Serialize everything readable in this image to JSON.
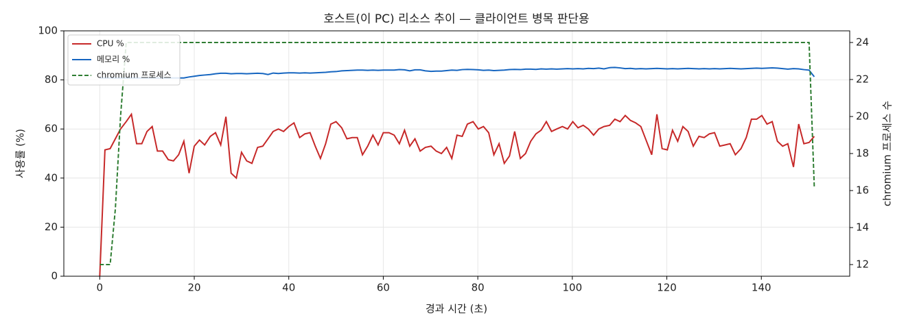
{
  "chart_data": {
    "type": "line",
    "title": "호스트(이 PC) 리소스 추이 — 클라이언트 병목 판단용",
    "xlabel": "경과 시간 (초)",
    "ylabel": "사용률 (%)",
    "y2label": "chromium 프로세스 수",
    "x": [
      0,
      1.1,
      2.2,
      3.3,
      4.4,
      5.6,
      6.7,
      7.8,
      8.9,
      10.0,
      11.1,
      12.2,
      13.3,
      14.5,
      15.6,
      16.7,
      17.8,
      18.9,
      20.0,
      21.1,
      22.2,
      23.4,
      24.5,
      25.6,
      26.7,
      27.8,
      28.9,
      30.0,
      31.1,
      32.2,
      33.4,
      34.5,
      35.6,
      36.7,
      37.8,
      38.9,
      40.0,
      41.1,
      42.3,
      43.4,
      44.5,
      45.6,
      46.7,
      47.8,
      48.9,
      50.0,
      51.2,
      52.3,
      53.4,
      54.5,
      55.6,
      56.7,
      57.8,
      58.9,
      60.0,
      61.2,
      62.3,
      63.4,
      64.5,
      65.6,
      66.7,
      67.8,
      68.9,
      70.1,
      71.2,
      72.3,
      73.4,
      74.5,
      75.6,
      76.7,
      77.8,
      79.0,
      80.1,
      81.2,
      82.3,
      83.4,
      84.5,
      85.6,
      86.7,
      87.8,
      89.0,
      90.1,
      91.2,
      92.3,
      93.4,
      94.5,
      95.6,
      96.7,
      97.9,
      99.0,
      100.1,
      101.2,
      102.3,
      103.4,
      104.5,
      105.6,
      106.7,
      107.9,
      109.0,
      110.1,
      111.2,
      112.3,
      113.4,
      114.5,
      115.6,
      116.8,
      117.9,
      119.0,
      120.1,
      121.2,
      122.3,
      123.4,
      124.5,
      125.6,
      126.8,
      127.9,
      129.0,
      130.1,
      131.2,
      132.3,
      133.4,
      134.5,
      135.7,
      136.8,
      137.9,
      139.0,
      140.1,
      141.2,
      142.3,
      143.4,
      144.5,
      145.6,
      146.8,
      147.9,
      149.0,
      150.1,
      151.2
    ],
    "series": [
      {
        "name": "CPU %",
        "color": "#c62828",
        "linestyle": "solid",
        "values": [
          0,
          51.5,
          52,
          56,
          60,
          63,
          66,
          54,
          54,
          59,
          61,
          51,
          51,
          47.5,
          47,
          49.5,
          55,
          42,
          53,
          55.5,
          53.5,
          57,
          58.5,
          53.5,
          65,
          42,
          40,
          50.5,
          47,
          46,
          52.5,
          53,
          56,
          59,
          60,
          59,
          61,
          62.5,
          56.5,
          58,
          58.5,
          53,
          48,
          54,
          62,
          63,
          60.5,
          56,
          56.5,
          56.5,
          49.5,
          53,
          57.5,
          53.5,
          58.5,
          58.5,
          57.5,
          54,
          59.5,
          53,
          56,
          51,
          52.5,
          53,
          51,
          50,
          52.5,
          48,
          57.5,
          57,
          62,
          63,
          60,
          61,
          58.5,
          49.5,
          54,
          46,
          49,
          59,
          48,
          50,
          55,
          58,
          59.5,
          63,
          59,
          60,
          61,
          60,
          63,
          60.5,
          61.5,
          60,
          57.5,
          60,
          61,
          61.5,
          64,
          63,
          65.5,
          63.5,
          62.5,
          61,
          55.5,
          49.5,
          66,
          52,
          51.5,
          59.5,
          55,
          61,
          59,
          53,
          57,
          56.5,
          58,
          58.5,
          53,
          53.5,
          54,
          49.5,
          52,
          56.5,
          64,
          64,
          65.5,
          62,
          63,
          55,
          53,
          54,
          44.5,
          62,
          54,
          54.5,
          57
        ]
      },
      {
        "name": "메모리 %",
        "color": "#1565c0",
        "linestyle": "solid",
        "values": [
          80.8,
          80.8,
          80.8,
          80.8,
          80.8,
          80.8,
          80.8,
          80.8,
          80.8,
          80.8,
          80.8,
          80.8,
          80.8,
          80.8,
          80.8,
          80.8,
          80.8,
          81.2,
          81.5,
          81.8,
          82,
          82.2,
          82.5,
          82.7,
          82.7,
          82.5,
          82.6,
          82.6,
          82.5,
          82.6,
          82.7,
          82.6,
          82.2,
          82.8,
          82.6,
          82.8,
          82.9,
          82.9,
          82.8,
          82.9,
          82.8,
          82.9,
          83,
          83.1,
          83.3,
          83.4,
          83.7,
          83.8,
          83.9,
          84,
          84,
          83.9,
          84,
          83.9,
          84,
          84,
          84,
          84.2,
          84.1,
          83.7,
          84.1,
          84.1,
          83.7,
          83.5,
          83.6,
          83.6,
          83.8,
          84,
          83.9,
          84.2,
          84.3,
          84.2,
          84.1,
          83.9,
          84,
          83.8,
          83.9,
          84,
          84.2,
          84.3,
          84.2,
          84.4,
          84.4,
          84.3,
          84.5,
          84.4,
          84.5,
          84.4,
          84.5,
          84.6,
          84.5,
          84.6,
          84.5,
          84.7,
          84.6,
          84.8,
          84.5,
          85,
          85.1,
          84.9,
          84.6,
          84.7,
          84.5,
          84.6,
          84.5,
          84.6,
          84.7,
          84.6,
          84.5,
          84.6,
          84.5,
          84.6,
          84.7,
          84.6,
          84.5,
          84.6,
          84.5,
          84.6,
          84.5,
          84.6,
          84.7,
          84.6,
          84.5,
          84.6,
          84.7,
          84.8,
          84.7,
          84.8,
          84.9,
          84.8,
          84.6,
          84.4,
          84.6,
          84.5,
          84.2,
          84,
          81.3
        ]
      },
      {
        "name": "chromium 프로세스",
        "color": "#2e7d32",
        "linestyle": "dashed",
        "axis": "y2",
        "values": [
          12,
          12,
          12,
          15,
          20,
          24,
          24,
          24,
          24,
          24,
          24,
          24,
          24,
          24,
          24,
          24,
          24,
          24,
          24,
          24,
          24,
          24,
          24,
          24,
          24,
          24,
          24,
          24,
          24,
          24,
          24,
          24,
          24,
          24,
          24,
          24,
          24,
          24,
          24,
          24,
          24,
          24,
          24,
          24,
          24,
          24,
          24,
          24,
          24,
          24,
          24,
          24,
          24,
          24,
          24,
          24,
          24,
          24,
          24,
          24,
          24,
          24,
          24,
          24,
          24,
          24,
          24,
          24,
          24,
          24,
          24,
          24,
          24,
          24,
          24,
          24,
          24,
          24,
          24,
          24,
          24,
          24,
          24,
          24,
          24,
          24,
          24,
          24,
          24,
          24,
          24,
          24,
          24,
          24,
          24,
          24,
          24,
          24,
          24,
          24,
          24,
          24,
          24,
          24,
          24,
          24,
          24,
          24,
          24,
          24,
          24,
          24,
          24,
          24,
          24,
          24,
          24,
          24,
          24,
          24,
          24,
          24,
          24,
          24,
          24,
          24,
          24,
          24,
          24,
          24,
          24,
          24,
          24,
          24,
          24,
          24,
          16.2
        ]
      }
    ],
    "xlim": [
      -7.6,
      158.7
    ],
    "xticks": [
      0,
      20,
      40,
      60,
      80,
      100,
      120,
      140
    ],
    "ylim": [
      0,
      100
    ],
    "yticks": [
      0,
      20,
      40,
      60,
      80,
      100
    ],
    "y2lim": [
      11.37,
      24.63
    ],
    "y2ticks": [
      12,
      14,
      16,
      18,
      20,
      22,
      24
    ],
    "grid": true,
    "legend": "upper left"
  }
}
